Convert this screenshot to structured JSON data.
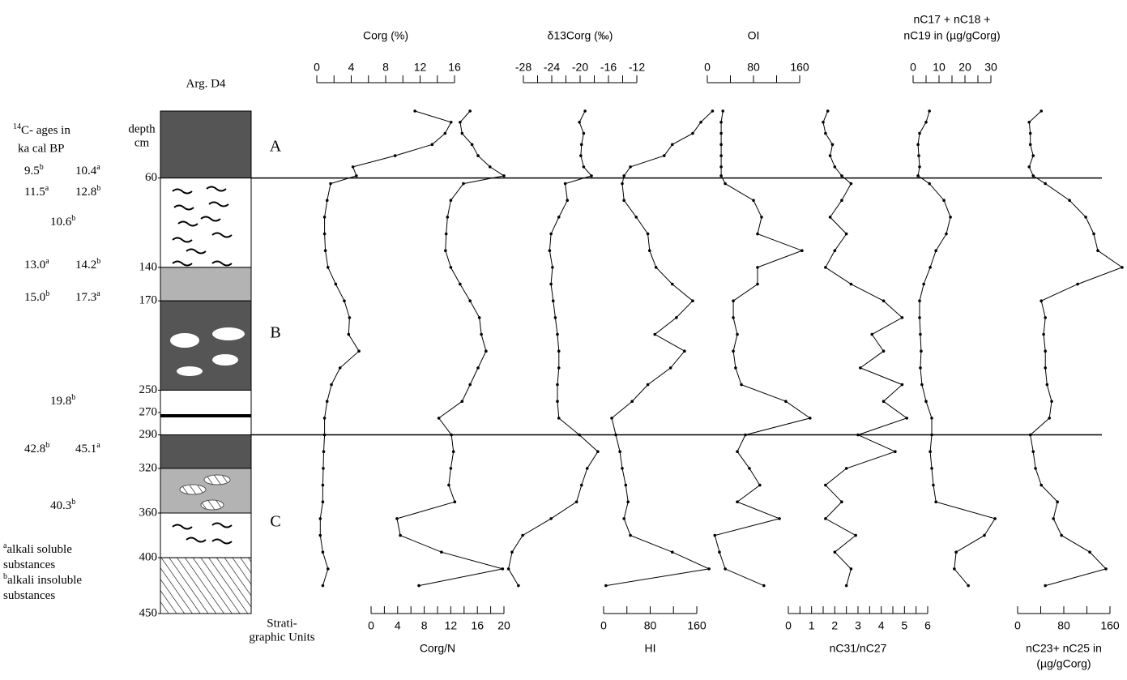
{
  "chart_data": {
    "type": "depth-profile",
    "column_title": "Arg. D4",
    "ylabel": [
      "depth",
      "cm"
    ],
    "ylim": [
      0,
      450
    ],
    "yticks": [
      60,
      140,
      170,
      250,
      270,
      290,
      320,
      360,
      400,
      450
    ],
    "unit_boundaries": [
      60,
      290
    ],
    "units": [
      "A",
      "B",
      "C"
    ],
    "units_label": [
      "Strati-",
      "graphic Units"
    ],
    "depth": [
      0,
      10,
      20,
      30,
      40,
      50,
      58,
      65,
      80,
      95,
      110,
      125,
      140,
      155,
      170,
      185,
      200,
      215,
      230,
      245,
      260,
      275,
      290,
      305,
      320,
      335,
      350,
      365,
      380,
      395,
      410,
      425
    ],
    "series": [
      {
        "name": "Corg (%)",
        "axis": "top",
        "color": "#000000",
        "xlim": [
          0,
          16
        ],
        "xticks": [
          0,
          4,
          8,
          12,
          16
        ],
        "xminorticks": [
          2,
          6,
          10,
          14
        ],
        "values": [
          11.4,
          15.6,
          14.9,
          13.4,
          9.1,
          4.2,
          4.6,
          1.6,
          1.2,
          0.9,
          0.9,
          1.0,
          1.3,
          2.2,
          3.2,
          3.8,
          3.7,
          4.9,
          2.7,
          1.7,
          1.2,
          0.9,
          0.9,
          0.8,
          0.75,
          0.7,
          0.7,
          0.4,
          0.4,
          0.7,
          1.3,
          0.7
        ]
      },
      {
        "name": "Corg/N",
        "axis": "bottom",
        "color": "#000000",
        "xlim": [
          0,
          20
        ],
        "xticks": [
          0,
          4,
          8,
          12,
          16,
          20
        ],
        "xminorticks": [
          2,
          6,
          10,
          14,
          18
        ],
        "values": [
          14.9,
          13.4,
          13.7,
          15.2,
          16.1,
          17.9,
          20,
          13.9,
          12,
          11.5,
          11.3,
          11.2,
          12,
          13.4,
          14.9,
          16.3,
          16.6,
          17.3,
          16.1,
          14.9,
          13.7,
          10.2,
          12.1,
          12.4,
          12,
          11.7,
          12.6,
          3.9,
          4.4,
          10.6,
          19.8,
          7.2
        ]
      },
      {
        "name": "δ13Corg (‰)",
        "axis": "top",
        "color": "#000000",
        "xlim": [
          -28,
          -12
        ],
        "xticks": [
          -28,
          -24,
          -20,
          -16,
          -12
        ],
        "xminorticks": [
          -26,
          -22,
          -18,
          -14
        ],
        "values": [
          -19.3,
          -20.1,
          -19.5,
          -19.8,
          -19.9,
          -19.5,
          -18.4,
          -22.1,
          -21.8,
          -23,
          -24.1,
          -24.3,
          -23.9,
          -24.1,
          -23.8,
          -23.5,
          -23.2,
          -23,
          -23,
          -23.2,
          -23.2,
          -23,
          -20.1,
          -17.5,
          -19,
          -19.8,
          -20.5,
          -24.1,
          -28.1,
          -29.6,
          -30.1,
          -28.7
        ]
      },
      {
        "name": "HI",
        "axis": "bottom",
        "color": "#000000",
        "xlim": [
          0,
          160
        ],
        "xticks": [
          0,
          80,
          160
        ],
        "xminorticks": [
          40,
          120
        ],
        "values": [
          187,
          167,
          153,
          118,
          104,
          46,
          35,
          32,
          35,
          56,
          76,
          79,
          90,
          118,
          153,
          125,
          88,
          139,
          115,
          76,
          49,
          14,
          21,
          28,
          32,
          38,
          42,
          35,
          46,
          118,
          181,
          4
        ]
      },
      {
        "name": "OI",
        "axis": "top",
        "color": "#000000",
        "xlim": [
          0,
          160
        ],
        "xticks": [
          0,
          80,
          160
        ],
        "xminorticks": [
          40,
          120
        ],
        "values": [
          27,
          24,
          24,
          24,
          24,
          24,
          24,
          31,
          80,
          94,
          87,
          164,
          87,
          87,
          45,
          45,
          52,
          45,
          49,
          59,
          136,
          178,
          66,
          52,
          73,
          91,
          52,
          125,
          13,
          21,
          31,
          98
        ]
      },
      {
        "name": "nC31/nC27",
        "axis": "bottom",
        "color": "#000000",
        "xlim": [
          0,
          6
        ],
        "xticks": [
          0,
          1,
          2,
          3,
          4,
          5,
          6
        ],
        "xminorticks": [
          0.5,
          1.5,
          2.5,
          3.5,
          4.5,
          5.5
        ],
        "values": [
          1.7,
          1.5,
          1.6,
          1.9,
          1.8,
          2.0,
          2.3,
          2.7,
          2.3,
          1.8,
          2.5,
          2.0,
          1.6,
          2.7,
          4.1,
          4.9,
          3.6,
          4.1,
          3.1,
          4.9,
          4.1,
          5.1,
          3.0,
          4.6,
          2.5,
          1.6,
          2.3,
          1.6,
          2.9,
          2.0,
          2.7,
          2.5
        ]
      },
      {
        "name": [
          "nC17 + nC18 +",
          "nC19 in (µg/gCorg)"
        ],
        "axis": "top",
        "color": "#000000",
        "xlim": [
          0,
          30
        ],
        "xticks": [
          0,
          10,
          20,
          30
        ],
        "xminorticks": [
          5,
          15,
          25
        ],
        "values": [
          6.3,
          5,
          2.5,
          1.9,
          2.2,
          2.5,
          1.9,
          6.3,
          11.9,
          14.4,
          12.8,
          8.8,
          6.6,
          4.1,
          2.5,
          2.5,
          2.8,
          3.1,
          2.8,
          3.4,
          5,
          7.2,
          7.2,
          6.6,
          7.2,
          7.8,
          8.8,
          31.6,
          27.5,
          16.6,
          15.9,
          21.3
        ]
      },
      {
        "name": [
          "nC23+ nC25 in",
          "(µg/gCorg)"
        ],
        "axis": "bottom",
        "color": "#000000",
        "xlim": [
          0,
          160
        ],
        "xticks": [
          0,
          80,
          160
        ],
        "xminorticks": [
          40,
          120
        ],
        "values": [
          41,
          20,
          22,
          22,
          27,
          20,
          27,
          48,
          90,
          118,
          132,
          139,
          181,
          104,
          41,
          48,
          45,
          48,
          48,
          51,
          59,
          55,
          22,
          27,
          31,
          41,
          69,
          62,
          76,
          125,
          153,
          48
        ]
      }
    ]
  },
  "ages_header": {
    "sup": "14",
    "text": "C- ages in",
    "line2": "ka cal BP"
  },
  "ages": [
    [
      {
        "value": "9.5",
        "note": "b"
      },
      {
        "value": "10.4",
        "note": "a"
      }
    ],
    [
      {
        "value": "11.5",
        "note": "a"
      },
      {
        "value": "12.8",
        "note": "b"
      }
    ],
    [
      {
        "value": "10.6",
        "note": "b"
      }
    ],
    [
      {
        "value": "13.0",
        "note": "a"
      },
      {
        "value": "14.2",
        "note": "b"
      }
    ],
    [
      {
        "value": "15.0",
        "note": "b"
      },
      {
        "value": "17.3",
        "note": "a"
      }
    ],
    [
      {
        "value": "19.8",
        "note": "b"
      }
    ],
    [
      {
        "value": "42.8",
        "note": "b"
      },
      {
        "value": "45.1",
        "note": "a"
      }
    ],
    [
      {
        "value": "40.3",
        "note": "b"
      }
    ]
  ],
  "footnotes": [
    {
      "note": "a",
      "text": "alkali soluble"
    },
    {
      "text": "substances"
    },
    {
      "note": "b",
      "text": "alkali insoluble"
    },
    {
      "text": "substances"
    }
  ]
}
